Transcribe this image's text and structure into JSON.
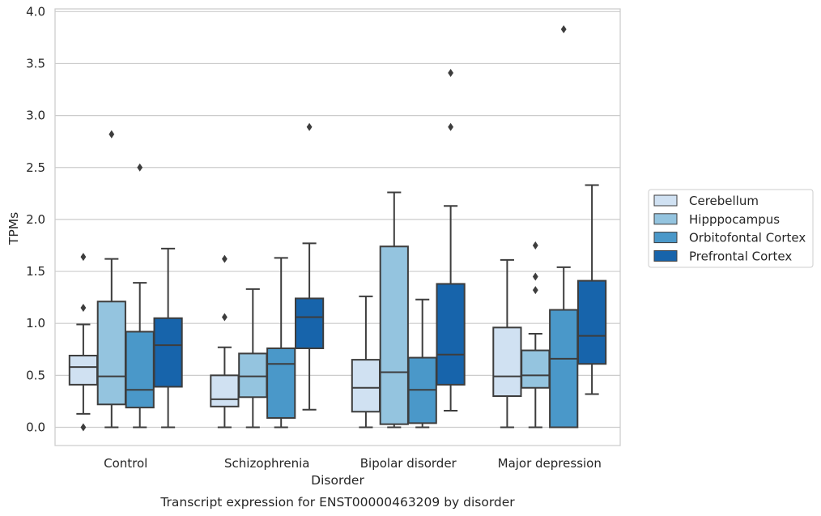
{
  "chart_data": {
    "type": "box",
    "title": "",
    "caption": "Transcript expression for ENST00000463209 by disorder",
    "xlabel": "Disorder",
    "ylabel": "TPMs",
    "ylim": [
      -0.18,
      4.03
    ],
    "yticks": [
      "0.0",
      "0.5",
      "1.0",
      "1.5",
      "2.0",
      "2.5",
      "3.0",
      "3.5",
      "4.0"
    ],
    "grid": "horizontal",
    "legend_position": "right",
    "categories": [
      "Control",
      "Schizophrenia",
      "Bipolar disorder",
      "Major depression"
    ],
    "series": [
      {
        "name": "Cerebellum",
        "color": "#d0e1f2",
        "boxes": [
          {
            "whisker_low": 0.13,
            "q1": 0.41,
            "median": 0.58,
            "q3": 0.69,
            "whisker_high": 0.99,
            "outliers": [
              1.64,
              1.15,
              0.0
            ]
          },
          {
            "whisker_low": 0.0,
            "q1": 0.2,
            "median": 0.27,
            "q3": 0.5,
            "whisker_high": 0.77,
            "outliers": [
              1.62,
              1.06
            ]
          },
          {
            "whisker_low": 0.0,
            "q1": 0.15,
            "median": 0.38,
            "q3": 0.65,
            "whisker_high": 1.26,
            "outliers": []
          },
          {
            "whisker_low": 0.0,
            "q1": 0.3,
            "median": 0.49,
            "q3": 0.96,
            "whisker_high": 1.61,
            "outliers": []
          }
        ]
      },
      {
        "name": "Hipppocampus",
        "color": "#94c4df",
        "boxes": [
          {
            "whisker_low": 0.0,
            "q1": 0.22,
            "median": 0.49,
            "q3": 1.21,
            "whisker_high": 1.62,
            "outliers": [
              2.82
            ]
          },
          {
            "whisker_low": 0.0,
            "q1": 0.29,
            "median": 0.49,
            "q3": 0.71,
            "whisker_high": 1.33,
            "outliers": []
          },
          {
            "whisker_low": 0.0,
            "q1": 0.03,
            "median": 0.53,
            "q3": 1.74,
            "whisker_high": 2.26,
            "outliers": []
          },
          {
            "whisker_low": 0.0,
            "q1": 0.38,
            "median": 0.5,
            "q3": 0.74,
            "whisker_high": 0.9,
            "outliers": [
              1.75,
              1.45,
              1.32
            ]
          }
        ]
      },
      {
        "name": "Orbitofontal Cortex",
        "color": "#4a98c9",
        "boxes": [
          {
            "whisker_low": 0.0,
            "q1": 0.19,
            "median": 0.36,
            "q3": 0.92,
            "whisker_high": 1.39,
            "outliers": [
              2.5
            ]
          },
          {
            "whisker_low": 0.0,
            "q1": 0.09,
            "median": 0.61,
            "q3": 0.76,
            "whisker_high": 1.63,
            "outliers": []
          },
          {
            "whisker_low": 0.0,
            "q1": 0.04,
            "median": 0.36,
            "q3": 0.67,
            "whisker_high": 1.23,
            "outliers": []
          },
          {
            "whisker_low": 0.0,
            "q1": 0.0,
            "median": 0.66,
            "q3": 1.13,
            "whisker_high": 1.54,
            "outliers": [
              3.83
            ]
          }
        ]
      },
      {
        "name": "Prefrontal Cortex",
        "color": "#1764ab",
        "boxes": [
          {
            "whisker_low": 0.0,
            "q1": 0.39,
            "median": 0.79,
            "q3": 1.05,
            "whisker_high": 1.72,
            "outliers": []
          },
          {
            "whisker_low": 0.17,
            "q1": 0.76,
            "median": 1.06,
            "q3": 1.24,
            "whisker_high": 1.77,
            "outliers": [
              2.89
            ]
          },
          {
            "whisker_low": 0.16,
            "q1": 0.41,
            "median": 0.7,
            "q3": 1.38,
            "whisker_high": 2.13,
            "outliers": [
              3.41,
              2.89
            ]
          },
          {
            "whisker_low": 0.32,
            "q1": 0.61,
            "median": 0.88,
            "q3": 1.41,
            "whisker_high": 2.33,
            "outliers": []
          }
        ]
      }
    ]
  }
}
